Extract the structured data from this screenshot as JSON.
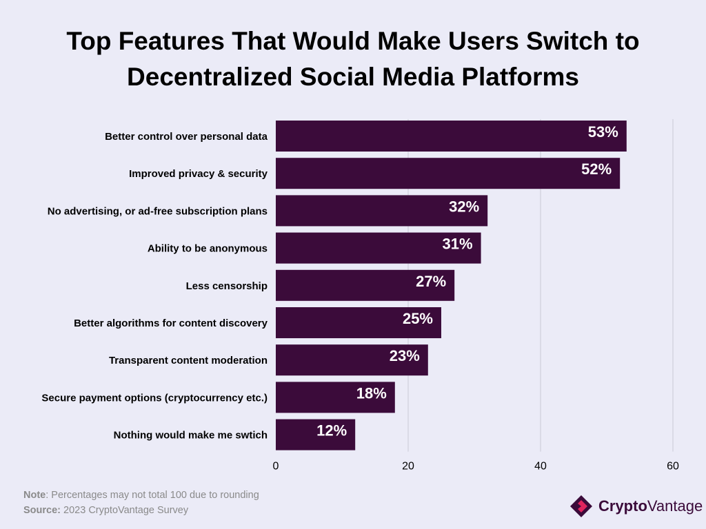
{
  "title": {
    "line1": "Top Features That Would Make Users Switch to",
    "line2": "Decentralized Social Media Platforms"
  },
  "chart_data": {
    "type": "bar",
    "orientation": "horizontal",
    "categories": [
      "Better control over personal data",
      "Improved privacy & security",
      "No advertising, or ad-free subscription plans",
      "Ability to be anonymous",
      "Less censorship",
      "Better algorithms for content discovery",
      "Transparent content moderation",
      "Secure payment options (cryptocurrency etc.)",
      "Nothing would make me swtich"
    ],
    "values": [
      53,
      52,
      32,
      31,
      27,
      25,
      23,
      18,
      12
    ],
    "data_labels": [
      "53%",
      "52%",
      "32%",
      "31%",
      "27%",
      "25%",
      "23%",
      "18%",
      "12%"
    ],
    "xlim": [
      0,
      60
    ],
    "x_ticks": [
      0,
      20,
      40,
      60
    ],
    "grid": "vertical",
    "colors": {
      "bar": "#3b0b3a",
      "grid": "#c8c8d4",
      "data_label": "#ffffff",
      "category_label": "#000000",
      "tick_label": "#000000"
    }
  },
  "footer": {
    "note_label": "Note",
    "note_text": ": Percentages may not total 100 due to rounding",
    "source_label": "Source:",
    "source_text": " 2023 CryptoVantage Survey"
  },
  "logo": {
    "text_bold": "Crypto",
    "text_regular": "Vantage",
    "icon": "diamond-logo-icon",
    "colors": {
      "mark_dark": "#3b0b3a",
      "mark_accent": "#e0245e"
    }
  }
}
